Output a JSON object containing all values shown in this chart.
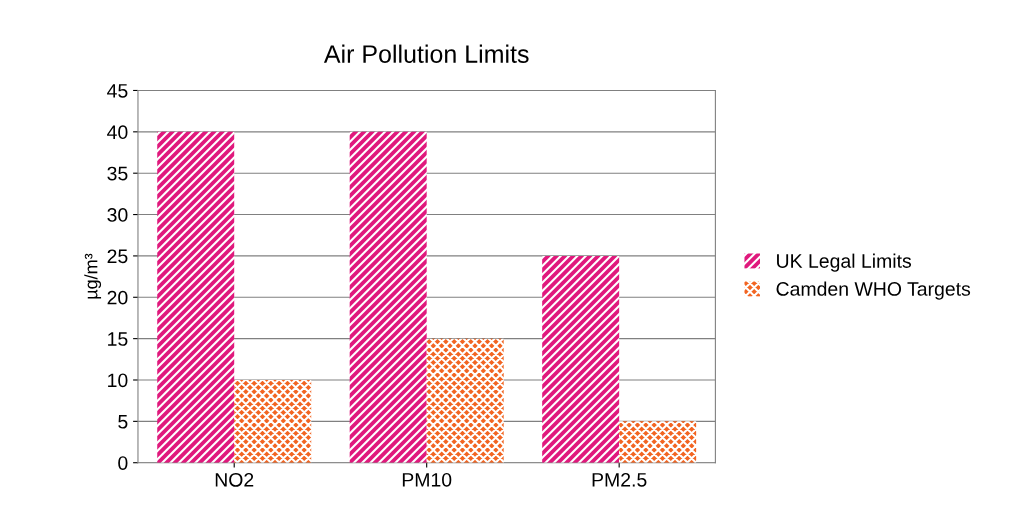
{
  "chart_data": {
    "type": "bar",
    "title": "Air Pollution Limits",
    "ylabel": "µg/m³",
    "categories": [
      "NO2",
      "PM10",
      "PM2.5"
    ],
    "series": [
      {
        "name": "UK Legal Limits",
        "color": "#e0197d",
        "values": [
          40,
          40,
          25
        ]
      },
      {
        "name": "Camden WHO Targets",
        "color": "#f26522",
        "values": [
          10,
          15,
          5
        ]
      }
    ],
    "ylim": [
      0,
      45
    ],
    "yticks": [
      0,
      5,
      10,
      15,
      20,
      25,
      30,
      35,
      40,
      45
    ],
    "grid": "y",
    "legend": "right"
  }
}
